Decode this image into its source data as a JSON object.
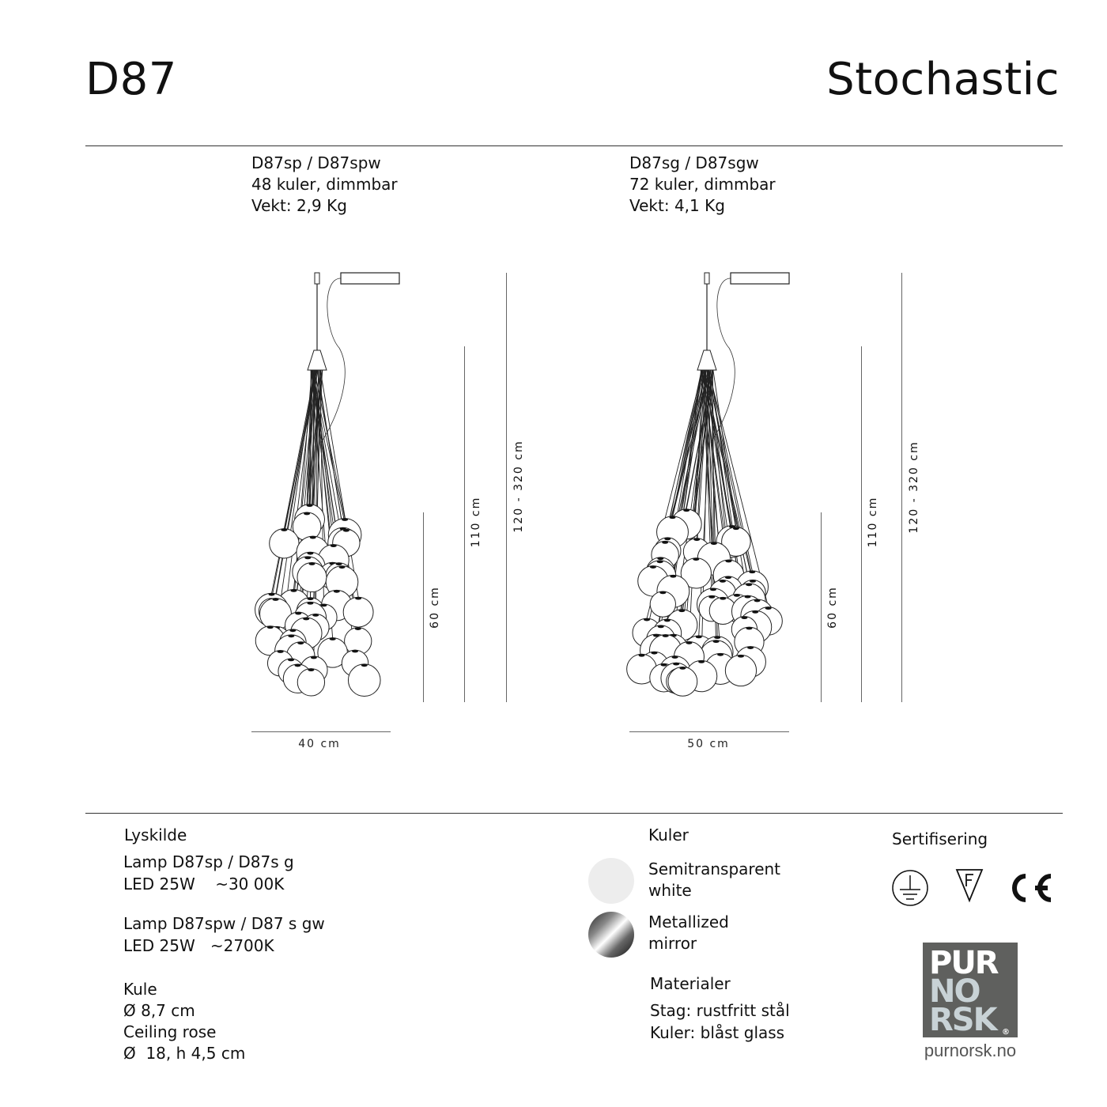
{
  "header": {
    "model": "D87",
    "name": "Stochastic"
  },
  "variants": [
    {
      "code": "D87sp / D87spw",
      "bulbs": "48 kuler, dimmbar",
      "weight": "Vekt: 2,9 Kg",
      "dims": {
        "width": "40 cm",
        "body": "60 cm",
        "total": "110 cm",
        "range": "120 - 320 cm"
      }
    },
    {
      "code": "D87sg / D87sgw",
      "bulbs": "72 kuler, dimmbar",
      "weight": "Vekt: 4,1 Kg",
      "dims": {
        "width": "50 cm",
        "body": "60 cm",
        "total": "110 cm",
        "range": "120 - 320 cm"
      }
    }
  ],
  "lyskilde": {
    "heading": "Lyskilde",
    "lamp1": "Lamp D87sp / D87s g",
    "led1": "LED 25W    ~30 00K",
    "lamp2": "Lamp D87spw / D87 s gw",
    "led2": "LED 25W   ~2700K",
    "kule": "Kule",
    "kule_dia": "Ø 8,7 cm",
    "rose": "Ceiling rose",
    "rose_dim": "Ø  18, h 4,5 cm"
  },
  "kuler": {
    "heading": "Kuler",
    "option1": {
      "line1": "Semitransparent",
      "line2": "white",
      "color": "#ededed"
    },
    "option2": {
      "line1": "Metallized",
      "line2": "mirror",
      "color": "#555555"
    }
  },
  "materialer": {
    "heading": "Materialer",
    "line1": "Stag: rustfritt stål",
    "line2": "Kuler: blåst glass"
  },
  "sertifisering": {
    "heading": "Sertifisering",
    "icons": [
      "ground-icon",
      "f-mark-icon",
      "ce-mark-icon"
    ]
  },
  "brand": {
    "logo_lines": [
      "PUR",
      "NO",
      "RSK"
    ],
    "url": "purnorsk.no",
    "logo_bg": "#5f605e",
    "logo_accent": "#c8d2d6"
  }
}
